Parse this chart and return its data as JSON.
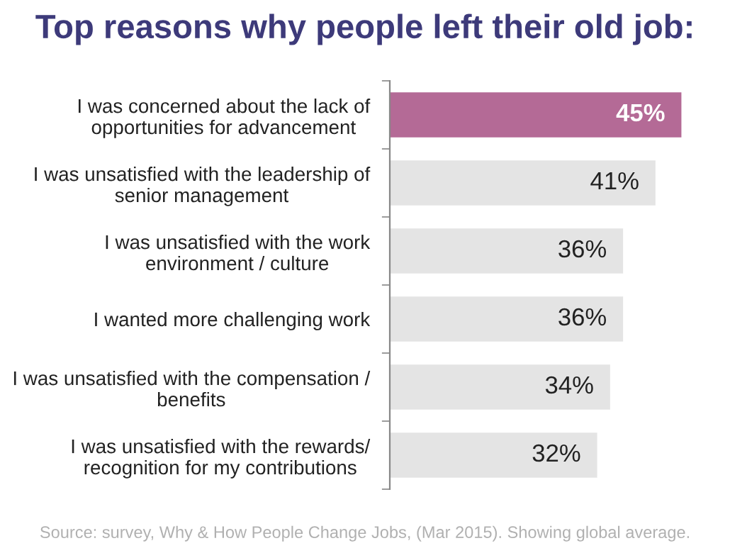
{
  "chart_data": {
    "type": "bar",
    "orientation": "horizontal",
    "title": "Top reasons why people left their old job:",
    "categories": [
      "I was concerned about the lack of\nopportunities for advancement",
      "I was unsatisfied with the leadership of\nsenior management",
      "I was unsatisfied with the work\nenvironment / culture",
      "I wanted more challenging work",
      "I was unsatisfied with the compensation /\nbenefits",
      "I was unsatisfied with the rewards/\nrecognition for my contributions"
    ],
    "values": [
      45,
      41,
      36,
      36,
      34,
      32
    ],
    "colors": [
      "#b46a96",
      "#e4e4e4",
      "#e4e4e4",
      "#e4e4e4",
      "#e4e4e4",
      "#e4e4e4"
    ],
    "value_labels": [
      "45%",
      "41%",
      "36%",
      "36%",
      "34%",
      "32%"
    ],
    "grid": false,
    "legend": false,
    "annotations": [
      "Source: survey, Why & How People Change Jobs, (Mar 2015). Showing global average."
    ]
  }
}
